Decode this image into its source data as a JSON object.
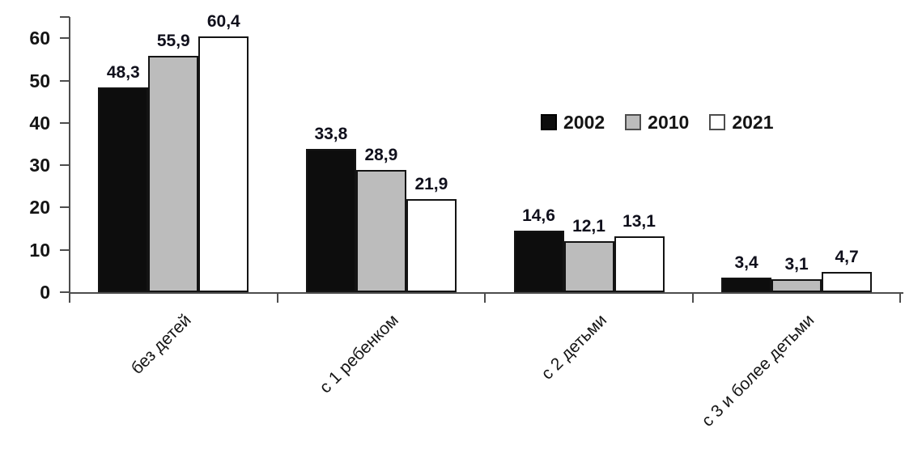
{
  "chart_data": {
    "type": "bar",
    "title": "",
    "categories": [
      "без детей",
      "с 1 ребенком",
      "с 2 детьми",
      "с 3 и более детьми"
    ],
    "series": [
      {
        "name": "2002",
        "color": "#0d0d0d",
        "values": [
          48.3,
          33.8,
          14.6,
          3.4
        ]
      },
      {
        "name": "2010",
        "color": "#bcbcbc",
        "values": [
          55.9,
          28.9,
          12.1,
          3.1
        ]
      },
      {
        "name": "2021",
        "color": "#ffffff",
        "values": [
          60.4,
          21.9,
          13.1,
          4.7
        ]
      }
    ],
    "y_ticks": [
      0,
      10,
      20,
      30,
      40,
      50,
      60
    ],
    "ylim": [
      0,
      65
    ],
    "xlabel": "",
    "ylabel": "",
    "grid": false,
    "decimal_separator": ",",
    "legend_position": "inside-top-right",
    "value_labels_shown": true
  }
}
